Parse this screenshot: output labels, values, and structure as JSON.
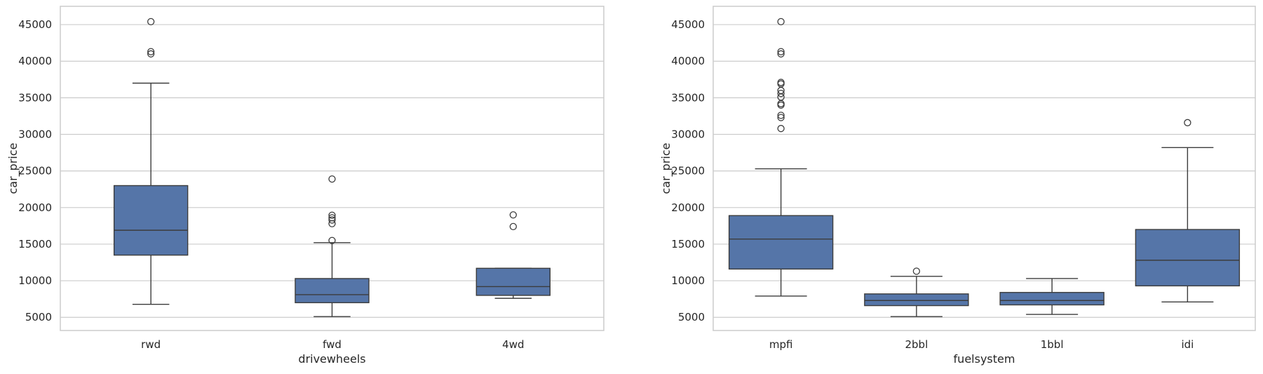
{
  "chart_data": [
    {
      "type": "boxplot",
      "xlabel": "drivewheels",
      "ylabel": "car_price",
      "ylim": [
        3200,
        47500
      ],
      "yticks": [
        5000,
        10000,
        15000,
        20000,
        25000,
        30000,
        35000,
        40000,
        45000
      ],
      "grid": "horizontal",
      "box_color": "#5575a8",
      "categories": [
        "rwd",
        "fwd",
        "4wd"
      ],
      "boxes": [
        {
          "category": "rwd",
          "whisker_low": 6780,
          "q1": 13500,
          "median": 16900,
          "q3": 23000,
          "whisker_high": 37000,
          "outliers": [
            41000,
            41300,
            45400
          ]
        },
        {
          "category": "fwd",
          "whisker_low": 5100,
          "q1": 7000,
          "median": 8100,
          "q3": 10300,
          "whisker_high": 15200,
          "outliers": [
            15500,
            17800,
            18300,
            18600,
            18950,
            23900
          ]
        },
        {
          "category": "4wd",
          "whisker_low": 7600,
          "q1": 8000,
          "median": 9200,
          "q3": 11700,
          "whisker_high": 11700,
          "outliers": [
            17400,
            19000
          ]
        }
      ]
    },
    {
      "type": "boxplot",
      "xlabel": "fuelsystem",
      "ylabel": "car_price",
      "ylim": [
        3200,
        47500
      ],
      "yticks": [
        5000,
        10000,
        15000,
        20000,
        25000,
        30000,
        35000,
        40000,
        45000
      ],
      "grid": "horizontal",
      "box_color": "#5575a8",
      "categories": [
        "mpfi",
        "2bbl",
        "1bbl",
        "idi"
      ],
      "boxes": [
        {
          "category": "mpfi",
          "whisker_low": 7900,
          "q1": 11600,
          "median": 15700,
          "q3": 18900,
          "whisker_high": 25300,
          "outliers": [
            30800,
            32300,
            32600,
            34000,
            34200,
            35100,
            35600,
            36000,
            36900,
            37100,
            41000,
            41300,
            45400
          ]
        },
        {
          "category": "2bbl",
          "whisker_low": 5100,
          "q1": 6600,
          "median": 7300,
          "q3": 8200,
          "whisker_high": 10600,
          "outliers": [
            11300
          ]
        },
        {
          "category": "1bbl",
          "whisker_low": 5400,
          "q1": 6700,
          "median": 7300,
          "q3": 8400,
          "whisker_high": 10300,
          "outliers": []
        },
        {
          "category": "idi",
          "whisker_low": 7100,
          "q1": 9300,
          "median": 12800,
          "q3": 17000,
          "whisker_high": 28200,
          "outliers": [
            31600
          ]
        }
      ]
    }
  ]
}
